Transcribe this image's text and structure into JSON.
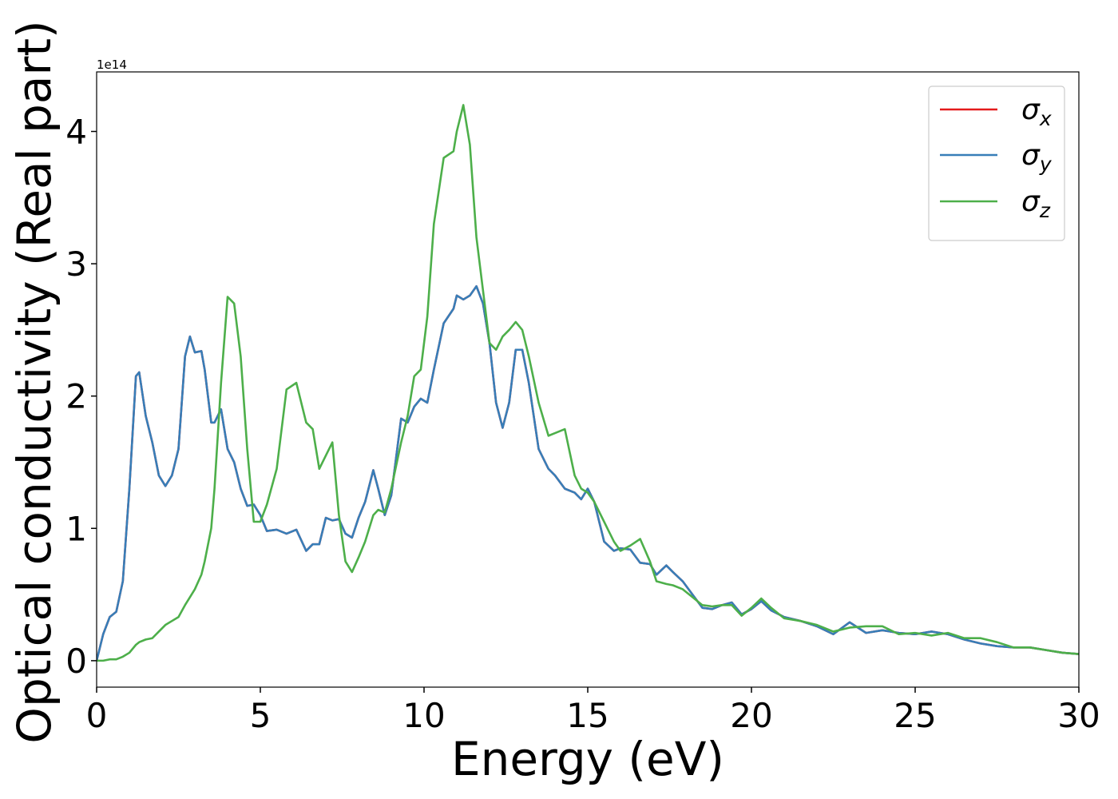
{
  "chart_data": {
    "type": "line",
    "xlabel": "Energy (eV)",
    "ylabel": "Optical conductivity (Real part)",
    "y_offset_label": "1e14",
    "xlim": [
      0,
      30
    ],
    "xticks": [
      0,
      5,
      10,
      15,
      20,
      25,
      30
    ],
    "ylim": [
      -0.2,
      4.45
    ],
    "yticks": [
      0,
      1,
      2,
      3,
      4
    ],
    "legend": "upper right",
    "x": [
      0,
      0.2,
      0.4,
      0.6,
      0.8,
      1.0,
      1.2,
      1.3,
      1.5,
      1.7,
      1.9,
      2.1,
      2.3,
      2.5,
      2.7,
      2.85,
      3.0,
      3.2,
      3.3,
      3.5,
      3.6,
      3.8,
      4.0,
      4.2,
      4.4,
      4.6,
      4.8,
      5.0,
      5.2,
      5.5,
      5.8,
      6.1,
      6.4,
      6.6,
      6.8,
      7.0,
      7.2,
      7.4,
      7.6,
      7.8,
      8.0,
      8.2,
      8.45,
      8.6,
      8.8,
      9.0,
      9.3,
      9.5,
      9.7,
      9.9,
      10.1,
      10.3,
      10.6,
      10.9,
      11.0,
      11.2,
      11.4,
      11.6,
      11.8,
      12.0,
      12.2,
      12.4,
      12.6,
      12.8,
      13.0,
      13.2,
      13.5,
      13.8,
      14.0,
      14.3,
      14.6,
      14.8,
      15.0,
      15.2,
      15.5,
      15.8,
      16.0,
      16.3,
      16.6,
      16.9,
      17.1,
      17.4,
      17.6,
      17.9,
      18.2,
      18.5,
      18.8,
      19.1,
      19.4,
      19.7,
      20.0,
      20.3,
      20.6,
      21.0,
      21.5,
      22.0,
      22.5,
      23.0,
      23.5,
      24.0,
      24.5,
      25.0,
      25.5,
      26.0,
      26.5,
      27.0,
      27.5,
      28.0,
      28.5,
      29.0,
      29.5,
      30
    ],
    "series": [
      {
        "name": "σx",
        "color": "#e41a1c",
        "values": [
          0,
          0.2,
          0.33,
          0.37,
          0.6,
          1.3,
          2.15,
          2.18,
          1.85,
          1.65,
          1.4,
          1.32,
          1.4,
          1.6,
          2.3,
          2.45,
          2.33,
          2.34,
          2.2,
          1.8,
          1.8,
          1.9,
          1.6,
          1.5,
          1.3,
          1.17,
          1.18,
          1.1,
          0.98,
          0.99,
          0.96,
          0.99,
          0.83,
          0.88,
          0.88,
          1.08,
          1.06,
          1.07,
          0.96,
          0.93,
          1.08,
          1.2,
          1.44,
          1.3,
          1.1,
          1.25,
          1.83,
          1.8,
          1.92,
          1.98,
          1.95,
          2.2,
          2.55,
          2.66,
          2.76,
          2.73,
          2.76,
          2.83,
          2.7,
          2.4,
          1.95,
          1.76,
          1.95,
          2.35,
          2.35,
          2.1,
          1.6,
          1.45,
          1.4,
          1.3,
          1.27,
          1.22,
          1.3,
          1.2,
          0.9,
          0.83,
          0.85,
          0.84,
          0.74,
          0.73,
          0.65,
          0.72,
          0.67,
          0.6,
          0.5,
          0.4,
          0.39,
          0.42,
          0.44,
          0.35,
          0.39,
          0.45,
          0.38,
          0.33,
          0.3,
          0.26,
          0.2,
          0.29,
          0.21,
          0.23,
          0.21,
          0.2,
          0.22,
          0.2,
          0.16,
          0.13,
          0.11,
          0.1,
          0.1,
          0.08,
          0.06,
          0.05
        ]
      },
      {
        "name": "σy",
        "color": "#377eb8",
        "values": [
          0,
          0.2,
          0.33,
          0.37,
          0.6,
          1.3,
          2.15,
          2.18,
          1.85,
          1.65,
          1.4,
          1.32,
          1.4,
          1.6,
          2.3,
          2.45,
          2.33,
          2.34,
          2.2,
          1.8,
          1.8,
          1.9,
          1.6,
          1.5,
          1.3,
          1.17,
          1.18,
          1.1,
          0.98,
          0.99,
          0.96,
          0.99,
          0.83,
          0.88,
          0.88,
          1.08,
          1.06,
          1.07,
          0.96,
          0.93,
          1.08,
          1.2,
          1.44,
          1.3,
          1.1,
          1.25,
          1.83,
          1.8,
          1.92,
          1.98,
          1.95,
          2.2,
          2.55,
          2.66,
          2.76,
          2.73,
          2.76,
          2.83,
          2.7,
          2.4,
          1.95,
          1.76,
          1.95,
          2.35,
          2.35,
          2.1,
          1.6,
          1.45,
          1.4,
          1.3,
          1.27,
          1.22,
          1.3,
          1.2,
          0.9,
          0.83,
          0.85,
          0.84,
          0.74,
          0.73,
          0.65,
          0.72,
          0.67,
          0.6,
          0.5,
          0.4,
          0.39,
          0.42,
          0.44,
          0.35,
          0.39,
          0.45,
          0.38,
          0.33,
          0.3,
          0.26,
          0.2,
          0.29,
          0.21,
          0.23,
          0.21,
          0.2,
          0.22,
          0.2,
          0.16,
          0.13,
          0.11,
          0.1,
          0.1,
          0.08,
          0.06,
          0.05
        ]
      },
      {
        "name": "σz",
        "color": "#4daf4a",
        "values": [
          0,
          0,
          0.01,
          0.01,
          0.03,
          0.06,
          0.12,
          0.14,
          0.16,
          0.17,
          0.22,
          0.27,
          0.3,
          0.33,
          0.42,
          0.48,
          0.54,
          0.65,
          0.75,
          1.0,
          1.3,
          2.1,
          2.75,
          2.7,
          2.3,
          1.6,
          1.05,
          1.05,
          1.18,
          1.45,
          2.05,
          2.1,
          1.8,
          1.75,
          1.45,
          1.55,
          1.65,
          1.1,
          0.75,
          0.67,
          0.78,
          0.9,
          1.1,
          1.14,
          1.12,
          1.3,
          1.65,
          1.85,
          2.15,
          2.2,
          2.6,
          3.3,
          3.8,
          3.85,
          4.0,
          4.2,
          3.9,
          3.2,
          2.8,
          2.4,
          2.35,
          2.45,
          2.5,
          2.56,
          2.5,
          2.3,
          1.95,
          1.7,
          1.72,
          1.75,
          1.4,
          1.3,
          1.27,
          1.2,
          1.05,
          0.9,
          0.83,
          0.87,
          0.92,
          0.75,
          0.6,
          0.58,
          0.57,
          0.54,
          0.48,
          0.42,
          0.41,
          0.42,
          0.42,
          0.34,
          0.4,
          0.47,
          0.4,
          0.32,
          0.3,
          0.27,
          0.22,
          0.25,
          0.26,
          0.26,
          0.2,
          0.21,
          0.19,
          0.21,
          0.17,
          0.17,
          0.14,
          0.1,
          0.1,
          0.08,
          0.06,
          0.05
        ]
      }
    ]
  }
}
